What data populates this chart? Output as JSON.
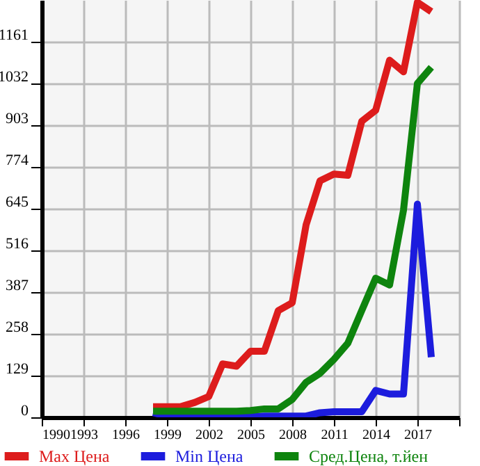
{
  "chart_data": {
    "type": "line",
    "x": [
      1998,
      1999,
      2000,
      2001,
      2002,
      2003,
      2004,
      2005,
      2006,
      2007,
      2008,
      2009,
      2010,
      2011,
      2012,
      2013,
      2014,
      2015,
      2016,
      2017,
      2018
    ],
    "series": [
      {
        "name": "Max Цена",
        "color": "#dd1c1c",
        "values": [
          33,
          33,
          33,
          46,
          64,
          165,
          158,
          204,
          204,
          330,
          354,
          595,
          731,
          752,
          748,
          915,
          949,
          1104,
          1068,
          1283,
          1254
        ]
      },
      {
        "name": "Min Цена",
        "color": "#1c1cdd",
        "values": [
          14,
          4,
          2,
          2,
          2,
          2,
          2,
          2,
          4,
          4,
          4,
          4,
          14,
          17,
          17,
          17,
          83,
          72,
          72,
          659,
          186
        ]
      },
      {
        "name": "Сред.Цена, т.йен",
        "color": "#0e840e",
        "values": [
          19,
          19,
          19,
          19,
          19,
          19,
          19,
          21,
          26,
          26,
          55,
          108,
          136,
          179,
          229,
          330,
          430,
          409,
          640,
          1032,
          1082
        ]
      }
    ],
    "xlim": [
      1990,
      2020
    ],
    "xticks": [
      1990,
      1993,
      1996,
      1999,
      2002,
      2005,
      2008,
      2011,
      2014,
      2017,
      {
        "value": 2020,
        "label": null
      }
    ],
    "ylim": [
      0,
      1290
    ],
    "yticks": [
      0,
      129,
      258,
      387,
      516,
      645,
      774,
      903,
      1032,
      1161
    ],
    "grid": true,
    "legend": "bottom",
    "marker": "none",
    "line_style": "solid"
  }
}
